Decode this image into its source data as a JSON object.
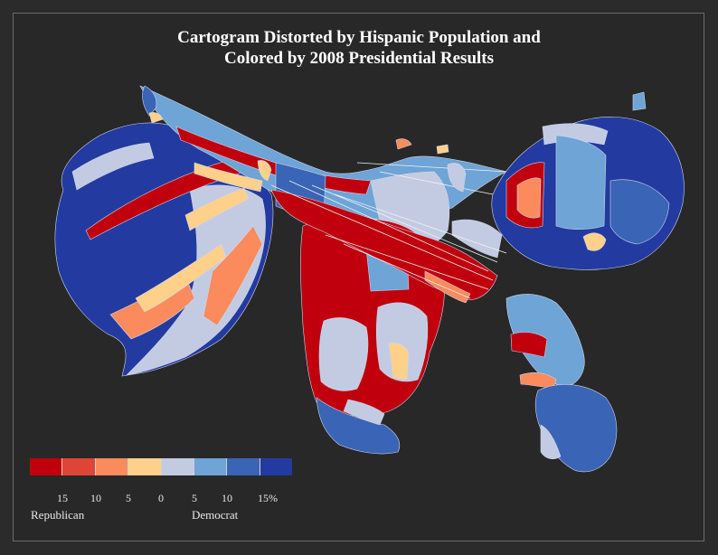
{
  "title": {
    "line1": "Cartogram Distorted by Hispanic Population and",
    "line2": "Colored by 2008 Presidential Results"
  },
  "legend": {
    "colors": [
      "#c0000d",
      "#de4536",
      "#fb8a5c",
      "#ffd08a",
      "#c3cbe3",
      "#6ea4d6",
      "#3a64b5",
      "#233aa0"
    ],
    "tick_labels": [
      "15",
      "10",
      "5",
      "0",
      "5",
      "10",
      "15%"
    ],
    "left_label": "Republican",
    "right_label": "Democrat"
  },
  "map_colors": {
    "rep_strong": "#c0000d",
    "rep_mid": "#de4536",
    "rep_light": "#fb8a5c",
    "rep_lean": "#ffd08a",
    "dem_lean": "#c3cbe3",
    "dem_light": "#6ea4d6",
    "dem_mid": "#3a64b5",
    "dem_strong": "#233aa0"
  }
}
